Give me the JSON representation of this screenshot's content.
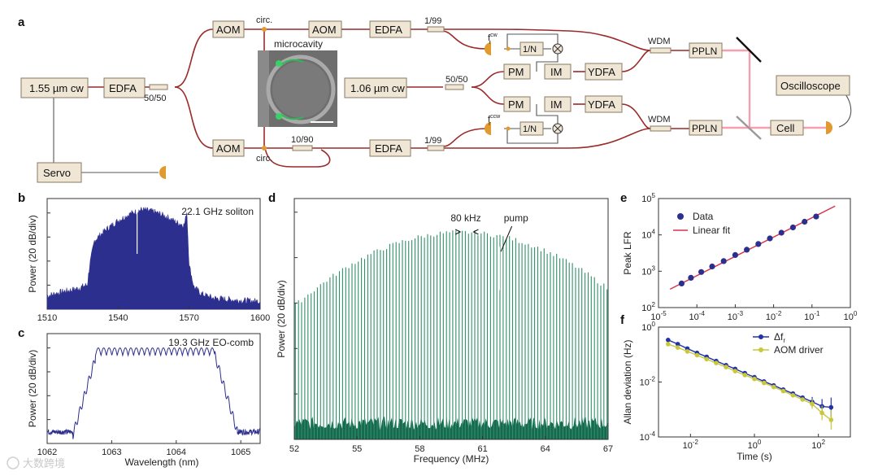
{
  "panel_labels": {
    "a": "a",
    "b": "b",
    "c": "c",
    "d": "d",
    "e": "e",
    "f": "f"
  },
  "schematic": {
    "boxes": {
      "laser155": "1.55 µm cw",
      "edfa_main": "EDFA",
      "aom_top": "AOM",
      "aom_top2": "AOM",
      "edfa_top": "EDFA",
      "aom_bot": "AOM",
      "edfa_bot": "EDFA",
      "servo": "Servo",
      "laser106": "1.06 µm cw",
      "pm_top": "PM",
      "im_top": "IM",
      "ydfa_top": "YDFA",
      "pm_bot": "PM",
      "im_bot": "IM",
      "ydfa_bot": "YDFA",
      "divn_top": "1/N",
      "divn_bot": "1/N",
      "ppln_top": "PPLN",
      "ppln_bot": "PPLN",
      "oscilloscope": "Oscilloscope",
      "cell": "Cell"
    },
    "labels": {
      "split_5050": "50/50",
      "split_5050_b": "50/50",
      "circ_top": "circ.",
      "circ_bot": "circ.",
      "tap_199_top": "1/99",
      "tap_199_bot": "1/99",
      "tap_1090": "10/90",
      "wdm_top": "WDM",
      "wdm_bot": "WDM",
      "fr_cw": "f",
      "fr_cw_sup": "cw",
      "fr_cw_sub": "r",
      "fr_ccw": "f",
      "fr_ccw_sup": "ccw",
      "fr_ccw_sub": "r",
      "microcavity": "microcavity"
    }
  },
  "chart_data": [
    {
      "id": "b",
      "type": "area",
      "title": "22.1 GHz soliton",
      "xlabel": "",
      "ylabel": "Power (20 dB/div)",
      "xlim": [
        1510,
        1600
      ],
      "xticks": [
        "1510",
        "1540",
        "1570",
        "1600"
      ],
      "envelope_x": [
        1510,
        1517,
        1522,
        1527,
        1528,
        1530,
        1535,
        1540,
        1545,
        1550,
        1555,
        1560,
        1565,
        1568,
        1569,
        1570,
        1572,
        1575,
        1580,
        1590,
        1600
      ],
      "envelope_y": [
        12,
        16,
        18,
        22,
        40,
        62,
        72,
        80,
        86,
        90,
        88,
        84,
        78,
        76,
        88,
        40,
        20,
        14,
        10,
        8,
        7
      ]
    },
    {
      "id": "c",
      "type": "line",
      "title": "19.3 GHz EO-comb",
      "xlabel": "Wavelength (nm)",
      "ylabel": "Power (20 dB/div)",
      "xlim": [
        1062,
        1065.3
      ],
      "xticks": [
        "1062",
        "1063",
        "1064",
        "1065"
      ],
      "plateau_start": 1062.75,
      "plateau_end": 1064.6,
      "ripple_count": 22
    },
    {
      "id": "d",
      "type": "bar",
      "title": "",
      "xlabel": "Frequency (MHz)",
      "ylabel": "Power (20 dB/div)",
      "xlim": [
        52,
        67
      ],
      "xticks": [
        "52",
        "55",
        "58",
        "61",
        "64",
        "67"
      ],
      "line_count": 100,
      "annotation_spacing": "80 kHz",
      "annotation_pump": "pump",
      "pump_freq": 61.8
    },
    {
      "id": "e",
      "type": "scatter",
      "xlabel": "",
      "ylabel": "Peak LFR",
      "x_log_range": [
        -5,
        0
      ],
      "y_log_range": [
        2,
        5
      ],
      "xticks": [
        "10-5",
        "10-4",
        "10-3",
        "10-2",
        "10-1",
        "100"
      ],
      "yticks": [
        "102",
        "103",
        "104",
        "105"
      ],
      "legend": {
        "data": "Data",
        "fit": "Linear fit"
      },
      "x": [
        4e-05,
        7e-05,
        0.00013,
        0.00025,
        0.0005,
        0.001,
        0.002,
        0.004,
        0.008,
        0.016,
        0.032,
        0.064,
        0.128
      ],
      "y": [
        460,
        660,
        950,
        1350,
        1900,
        2800,
        3900,
        5600,
        8000,
        11500,
        16000,
        23000,
        32000
      ],
      "fit_x": [
        2e-05,
        0.4
      ],
      "fit_y": [
        320,
        62000
      ]
    },
    {
      "id": "f",
      "type": "line",
      "xlabel": "Time (s)",
      "ylabel": "Allan deviation (Hz)",
      "x_log_range": [
        -3,
        3
      ],
      "y_log_range": [
        -4,
        0
      ],
      "xticks": [
        "10-2",
        "100",
        "102"
      ],
      "yticks": [
        "10-4",
        "10-2",
        "100"
      ],
      "series": [
        {
          "name": "Δf",
          "name_sub": "r",
          "color": "#2233aa",
          "x": [
            0.002,
            0.004,
            0.008,
            0.016,
            0.032,
            0.064,
            0.13,
            0.25,
            0.5,
            1,
            2,
            4,
            8,
            16,
            32,
            64,
            130,
            250
          ],
          "y": [
            0.34,
            0.24,
            0.165,
            0.115,
            0.083,
            0.058,
            0.041,
            0.03,
            0.021,
            0.015,
            0.0105,
            0.0075,
            0.0053,
            0.0038,
            0.0027,
            0.0019,
            0.0013,
            0.0012
          ]
        },
        {
          "name": "AOM driver",
          "name_sub": "",
          "color": "#c8c83a",
          "x": [
            0.002,
            0.004,
            0.008,
            0.016,
            0.032,
            0.064,
            0.13,
            0.25,
            0.5,
            1,
            2,
            4,
            8,
            16,
            32,
            64,
            130,
            250
          ],
          "y": [
            0.24,
            0.18,
            0.13,
            0.095,
            0.068,
            0.049,
            0.035,
            0.025,
            0.018,
            0.013,
            0.0093,
            0.0066,
            0.0047,
            0.0033,
            0.0023,
            0.0016,
            0.00075,
            0.00042
          ]
        }
      ]
    }
  ],
  "watermark": "大数跨境"
}
